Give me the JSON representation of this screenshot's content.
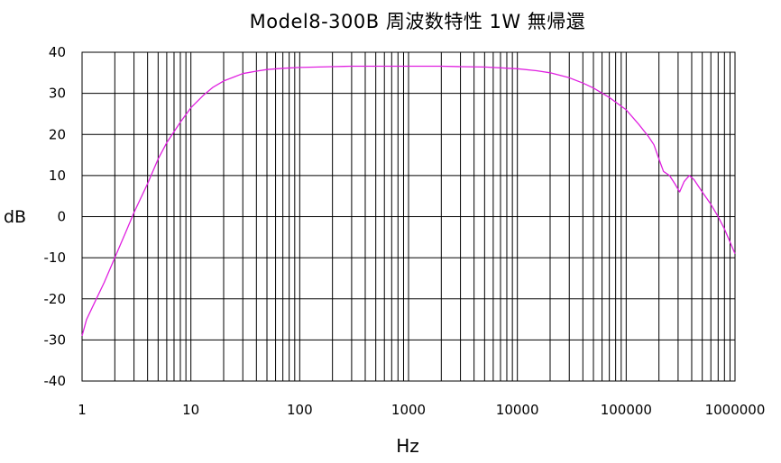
{
  "chart_data": {
    "type": "line",
    "title": "Model8-300B 周波数特性  1W  無帰還",
    "xlabel": "Hz",
    "ylabel": "dB",
    "xscale": "log",
    "xlim": [
      1,
      1000000
    ],
    "ylim": [
      -40,
      40
    ],
    "grid": true,
    "xticks": [
      "1",
      "10",
      "100",
      "1000",
      "10000",
      "100000",
      "1000000"
    ],
    "yticks": [
      "40",
      "30",
      "20",
      "10",
      "0",
      "-10",
      "-20",
      "-30",
      "-40"
    ],
    "series": [
      {
        "color": "#e020e0",
        "points": [
          [
            1,
            -29
          ],
          [
            1.1,
            -25
          ],
          [
            1.3,
            -21
          ],
          [
            1.6,
            -16
          ],
          [
            2,
            -10
          ],
          [
            2.5,
            -4
          ],
          [
            3,
            1
          ],
          [
            4,
            8
          ],
          [
            5,
            14
          ],
          [
            6,
            18
          ],
          [
            8,
            23
          ],
          [
            10,
            26.5
          ],
          [
            13,
            29.5
          ],
          [
            16,
            31.5
          ],
          [
            20,
            33
          ],
          [
            25,
            34
          ],
          [
            30,
            34.8
          ],
          [
            40,
            35.4
          ],
          [
            50,
            35.8
          ],
          [
            70,
            36.1
          ],
          [
            100,
            36.3
          ],
          [
            200,
            36.5
          ],
          [
            300,
            36.6
          ],
          [
            500,
            36.6
          ],
          [
            1000,
            36.6
          ],
          [
            2000,
            36.6
          ],
          [
            3000,
            36.5
          ],
          [
            5000,
            36.4
          ],
          [
            10000,
            36.0
          ],
          [
            15000,
            35.5
          ],
          [
            20000,
            35.0
          ],
          [
            30000,
            33.8
          ],
          [
            40000,
            32.5
          ],
          [
            50000,
            31.3
          ],
          [
            70000,
            29
          ],
          [
            100000,
            26
          ],
          [
            130000,
            22.5
          ],
          [
            160000,
            19.5
          ],
          [
            180000,
            17.5
          ],
          [
            200000,
            14
          ],
          [
            220000,
            11
          ],
          [
            250000,
            10
          ],
          [
            280000,
            8
          ],
          [
            310000,
            6
          ],
          [
            340000,
            8.5
          ],
          [
            380000,
            10
          ],
          [
            420000,
            9
          ],
          [
            500000,
            6
          ],
          [
            600000,
            3
          ],
          [
            700000,
            0
          ],
          [
            800000,
            -3
          ],
          [
            1000000,
            -9
          ]
        ]
      }
    ]
  }
}
